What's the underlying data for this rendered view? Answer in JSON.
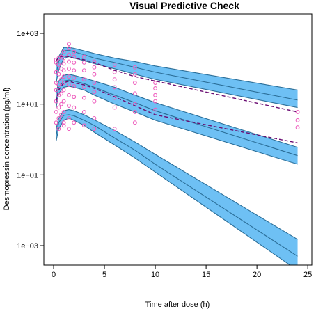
{
  "chart_data": {
    "type": "scatter",
    "title": "Visual Predictive Check",
    "xlabel": "Time after dose (h)",
    "ylabel": "Desmopressin concentration (pg/ml)",
    "x_ticks": [
      0,
      5,
      10,
      15,
      20,
      25
    ],
    "y_ticks": [
      0.001,
      0.1,
      10,
      1000
    ],
    "y_tick_labels": [
      "1e−03",
      "1e−01",
      "1e+01",
      "1e+03"
    ],
    "xlim": [
      -0.96,
      25.4
    ],
    "ylim": [
      0.001,
      1000
    ],
    "y_scale": "log",
    "grid": false,
    "band_color": "#6EC0F4",
    "band_edge_color": "#2B6E98",
    "point_color": "#EE5FBE",
    "observed_median_color": "#6A0C72",
    "bands": [
      {
        "name": "upper",
        "x": [
          0.25,
          0.5,
          1,
          1.5,
          2,
          3,
          4,
          6,
          8,
          10,
          24
        ],
        "lower": [
          40,
          90,
          200,
          220,
          200,
          170,
          140,
          100,
          70,
          50,
          8
        ],
        "median": [
          70,
          160,
          320,
          330,
          300,
          250,
          200,
          150,
          110,
          80,
          13
        ],
        "upper": [
          120,
          220,
          400,
          400,
          380,
          320,
          270,
          200,
          160,
          120,
          25
        ]
      },
      {
        "name": "middle",
        "x": [
          0.25,
          0.5,
          1,
          1.5,
          2,
          3,
          4,
          6,
          8,
          10,
          24
        ],
        "lower": [
          8,
          20,
          30,
          32,
          30,
          25,
          18,
          10,
          6,
          3.5,
          0.2
        ],
        "median": [
          12,
          30,
          45,
          48,
          45,
          38,
          30,
          18,
          11,
          6.5,
          0.35
        ],
        "upper": [
          20,
          45,
          65,
          70,
          65,
          55,
          45,
          30,
          18,
          11,
          0.6
        ]
      },
      {
        "name": "lower",
        "x": [
          0.25,
          0.5,
          1,
          1.5,
          2,
          3,
          4,
          6,
          8,
          10,
          24
        ],
        "lower": [
          0.9,
          2,
          3.5,
          4,
          3.5,
          2.5,
          1.6,
          0.7,
          0.3,
          0.12,
          0.0002
        ],
        "median": [
          1.3,
          3,
          4.8,
          5,
          4.7,
          3.5,
          2.5,
          1.1,
          0.5,
          0.2,
          0.0005
        ],
        "upper": [
          2,
          4,
          6.5,
          7,
          6.5,
          5,
          3.6,
          1.8,
          0.85,
          0.38,
          0.0015
        ]
      }
    ],
    "observed_median": {
      "x": [
        0.25,
        0.5,
        1,
        1.5,
        2,
        3,
        4,
        6,
        8,
        10,
        24
      ],
      "y": [
        12,
        25,
        40,
        45,
        40,
        35,
        28,
        16,
        9,
        5,
        0.8
      ]
    },
    "observed_upper": {
      "x": [
        0.25,
        0.5,
        1,
        1.5,
        2,
        3,
        4,
        6,
        8,
        10,
        24
      ],
      "y": [
        170,
        210,
        230,
        220,
        200,
        180,
        150,
        90,
        60,
        45,
        6
      ]
    },
    "points": [
      {
        "x": 0.25,
        "y": 150
      },
      {
        "x": 0.25,
        "y": 80
      },
      {
        "x": 0.25,
        "y": 40
      },
      {
        "x": 0.25,
        "y": 25
      },
      {
        "x": 0.25,
        "y": 12
      },
      {
        "x": 0.25,
        "y": 6
      },
      {
        "x": 0.25,
        "y": 3
      },
      {
        "x": 0.25,
        "y": 180
      },
      {
        "x": 0.5,
        "y": 200
      },
      {
        "x": 0.5,
        "y": 130
      },
      {
        "x": 0.5,
        "y": 70
      },
      {
        "x": 0.5,
        "y": 35
      },
      {
        "x": 0.5,
        "y": 18
      },
      {
        "x": 0.5,
        "y": 8
      },
      {
        "x": 0.5,
        "y": 4
      },
      {
        "x": 0.5,
        "y": 2
      },
      {
        "x": 0.75,
        "y": 220
      },
      {
        "x": 0.75,
        "y": 100
      },
      {
        "x": 0.75,
        "y": 50
      },
      {
        "x": 0.75,
        "y": 20
      },
      {
        "x": 0.75,
        "y": 10
      },
      {
        "x": 0.75,
        "y": 5
      },
      {
        "x": 1,
        "y": 300
      },
      {
        "x": 1,
        "y": 200
      },
      {
        "x": 1,
        "y": 140
      },
      {
        "x": 1,
        "y": 90
      },
      {
        "x": 1,
        "y": 60
      },
      {
        "x": 1,
        "y": 40
      },
      {
        "x": 1,
        "y": 25
      },
      {
        "x": 1,
        "y": 12
      },
      {
        "x": 1,
        "y": 6
      },
      {
        "x": 1,
        "y": 3
      },
      {
        "x": 1,
        "y": 2.5
      },
      {
        "x": 1.5,
        "y": 500
      },
      {
        "x": 1.5,
        "y": 380
      },
      {
        "x": 1.5,
        "y": 250
      },
      {
        "x": 1.5,
        "y": 160
      },
      {
        "x": 1.5,
        "y": 100
      },
      {
        "x": 1.5,
        "y": 60
      },
      {
        "x": 1.5,
        "y": 35
      },
      {
        "x": 1.5,
        "y": 18
      },
      {
        "x": 1.5,
        "y": 9
      },
      {
        "x": 1.5,
        "y": 4
      },
      {
        "x": 1.5,
        "y": 2
      },
      {
        "x": 2,
        "y": 300
      },
      {
        "x": 2,
        "y": 220
      },
      {
        "x": 2,
        "y": 150
      },
      {
        "x": 2,
        "y": 90
      },
      {
        "x": 2,
        "y": 55
      },
      {
        "x": 2,
        "y": 32
      },
      {
        "x": 2,
        "y": 16
      },
      {
        "x": 2,
        "y": 8
      },
      {
        "x": 2,
        "y": 3
      },
      {
        "x": 3,
        "y": 220
      },
      {
        "x": 3,
        "y": 150
      },
      {
        "x": 3,
        "y": 90
      },
      {
        "x": 3,
        "y": 50
      },
      {
        "x": 3,
        "y": 30
      },
      {
        "x": 3,
        "y": 15
      },
      {
        "x": 3,
        "y": 6
      },
      {
        "x": 3,
        "y": 2.5
      },
      {
        "x": 4,
        "y": 160
      },
      {
        "x": 4,
        "y": 110
      },
      {
        "x": 4,
        "y": 70
      },
      {
        "x": 4,
        "y": 40
      },
      {
        "x": 4,
        "y": 22
      },
      {
        "x": 4,
        "y": 12
      },
      {
        "x": 4,
        "y": 4
      },
      {
        "x": 4,
        "y": 2
      },
      {
        "x": 6,
        "y": 130
      },
      {
        "x": 6,
        "y": 80
      },
      {
        "x": 6,
        "y": 50
      },
      {
        "x": 6,
        "y": 30
      },
      {
        "x": 6,
        "y": 15
      },
      {
        "x": 6,
        "y": 8
      },
      {
        "x": 6,
        "y": 2
      },
      {
        "x": 8,
        "y": 110
      },
      {
        "x": 8,
        "y": 70
      },
      {
        "x": 8,
        "y": 40
      },
      {
        "x": 8,
        "y": 20
      },
      {
        "x": 8,
        "y": 10
      },
      {
        "x": 8,
        "y": 6
      },
      {
        "x": 8,
        "y": 3
      },
      {
        "x": 10,
        "y": 40
      },
      {
        "x": 10,
        "y": 28
      },
      {
        "x": 10,
        "y": 18
      },
      {
        "x": 10,
        "y": 12
      },
      {
        "x": 10,
        "y": 7
      },
      {
        "x": 24,
        "y": 6
      },
      {
        "x": 24,
        "y": 3.5
      },
      {
        "x": 24,
        "y": 2.2
      }
    ]
  }
}
